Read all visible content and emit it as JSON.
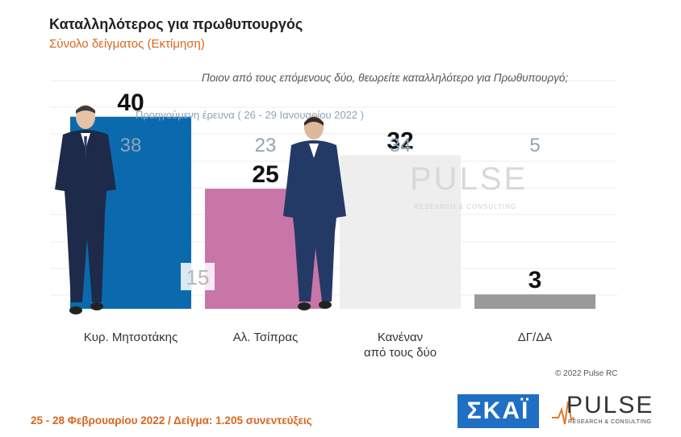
{
  "header": {
    "title": "Καταλληλότερος για πρωθυπουργός",
    "subtitle": "Σύνολο δείγματος   (Εκτίμηση)",
    "question": "Ποιον από τους επόμενους δύο, θεωρείτε καταλληλότερο για Πρωθυπουργό;",
    "previous_survey_label": "Προηγούμενη έρευνα  ( 26 - 29 Ιανουαρίου  2022 )"
  },
  "chart_data": {
    "type": "bar",
    "categories": [
      "Κυρ. Μητσοτάκης",
      "Αλ. Τσίπρας",
      "Κανέναν από τους δύο",
      "ΔΓ/ΔΑ"
    ],
    "category_lines": [
      [
        "Κυρ. Μητσοτάκης"
      ],
      [
        "Αλ. Τσίπρας"
      ],
      [
        "Κανέναν",
        "από τους δύο"
      ],
      [
        "ΔΓ/ΔΑ"
      ]
    ],
    "values": [
      40,
      25,
      32,
      3
    ],
    "previous_values": [
      38,
      23,
      34,
      5
    ],
    "difference_label": "15",
    "colors": [
      "#0b6aad",
      "#c875a8",
      "#eeeeee",
      "#9a9a9a"
    ],
    "ylim": [
      0,
      45
    ],
    "grid": true
  },
  "watermark": {
    "name": "PULSE",
    "tagline": "RESEARCH & CONSULTING"
  },
  "copyright": "© 2022 Pulse RC",
  "footer": "25 - 28  Φεβρουαρίου  2022  /  Δείγμα:  1.205 συνεντεύξεις",
  "logos": {
    "skai": "ΣΚΑΪ",
    "pulse": "PULSE",
    "pulse_tagline": "RESEARCH & CONSULTING"
  }
}
